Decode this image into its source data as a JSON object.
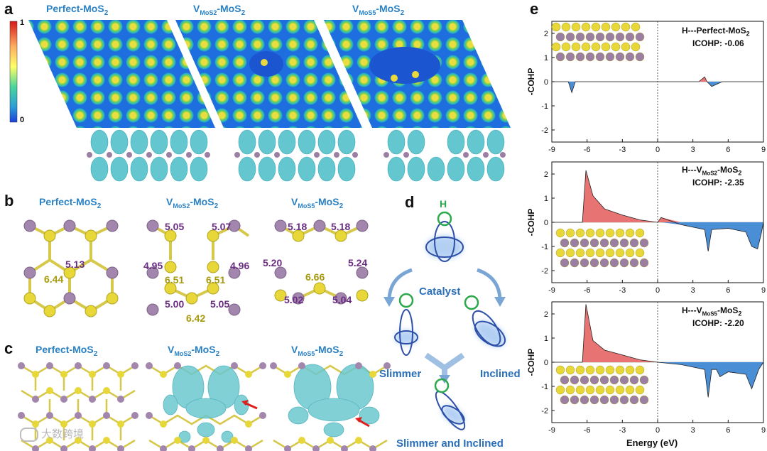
{
  "panels": {
    "a": {
      "letter": "a",
      "titles": [
        "Perfect-MoS",
        "V",
        "V"
      ],
      "colorbar": {
        "max": "1",
        "min": "0"
      }
    },
    "b": {
      "letter": "b",
      "titles": [
        "Perfect-MoS2",
        "VMoS2-MoS2",
        "VMoS5-MoS2"
      ],
      "perfect": {
        "a": "5.13",
        "b": "6.44"
      },
      "vmos2": {
        "a": "5.05",
        "b": "5.07",
        "c": "4.95",
        "d": "6.51",
        "e": "6.51",
        "f": "4.96",
        "g": "5.00",
        "h": "5.05",
        "i": "6.42"
      },
      "vmos5": {
        "a": "5.18",
        "b": "5.18",
        "c": "5.20",
        "d": "6.66",
        "e": "5.24",
        "f": "5.02",
        "g": "5.04"
      }
    },
    "c": {
      "letter": "c"
    },
    "d": {
      "letter": "d",
      "h": "H",
      "catalyst": "Catalyst",
      "slimmer": "Slimmer",
      "inclined": "Inclined",
      "both": "Slimmer and Inclined"
    },
    "e": {
      "letter": "e"
    }
  },
  "title_parts": {
    "sub2": "2",
    "v": "V",
    "mos2_sub": "MoS2",
    "mos5_sub": "MoS5",
    "mos2_tail": "-MoS",
    "perfect": "Perfect-MoS"
  },
  "chart_data": [
    {
      "type": "area",
      "title": "H---Perfect-MoS2",
      "annotation": "ICOHP: -0.06",
      "ylabel": "-COHP",
      "xlabel": "",
      "xlim": [
        -9,
        9
      ],
      "ylim": [
        -2.5,
        2.5
      ],
      "xticks": [
        "-9",
        "-6",
        "-3",
        "0",
        "3",
        "6",
        "9"
      ],
      "yticks": [
        "2",
        "1",
        "0",
        "-1",
        "-2"
      ],
      "x": [
        -9,
        -7.6,
        -7.3,
        -7.0,
        -6.5,
        -3.0,
        0,
        3.5,
        4.0,
        4.2,
        4.6,
        5.5,
        9
      ],
      "y": [
        0,
        0,
        -0.45,
        0,
        0,
        0,
        0,
        0,
        0.2,
        0,
        -0.2,
        0,
        0
      ]
    },
    {
      "type": "area",
      "title": "H---VMoS2-MoS2",
      "annotation": "ICOHP: -2.35",
      "ylabel": "-COHP",
      "xlabel": "",
      "xlim": [
        -9,
        9
      ],
      "ylim": [
        -2.5,
        2.5
      ],
      "xticks": [
        "-9",
        "-6",
        "-3",
        "0",
        "3",
        "6",
        "9"
      ],
      "yticks": [
        "2",
        "1",
        "0",
        "-1",
        "-2"
      ],
      "x": [
        -9,
        -6.4,
        -6.1,
        -5.5,
        -4.5,
        -3.0,
        -1.5,
        0,
        0.3,
        2.0,
        4.0,
        4.3,
        4.6,
        6.0,
        7.5,
        8.0,
        8.5,
        8.8,
        9
      ],
      "y": [
        0,
        0,
        2.15,
        1.1,
        0.55,
        0.3,
        0.1,
        0,
        0.2,
        -0.1,
        -0.3,
        -1.2,
        -0.3,
        -0.25,
        -0.4,
        -1.0,
        -1.1,
        -0.5,
        0
      ]
    },
    {
      "type": "area",
      "title": "H---VMoS5-MoS2",
      "annotation": "ICOHP: -2.20",
      "ylabel": "-COHP",
      "xlabel": "Energy (eV)",
      "xlim": [
        -9,
        9
      ],
      "ylim": [
        -2.5,
        2.5
      ],
      "xticks": [
        "-9",
        "-6",
        "-3",
        "0",
        "3",
        "6",
        "9"
      ],
      "yticks": [
        "2",
        "1",
        "0",
        "-1",
        "-2"
      ],
      "x": [
        -9,
        -6.4,
        -6.1,
        -5.5,
        -4.5,
        -3.0,
        -1.5,
        0,
        2.0,
        4.0,
        4.3,
        4.6,
        5.0,
        5.3,
        6.0,
        7.5,
        8.0,
        8.6,
        9
      ],
      "y": [
        0,
        0,
        2.4,
        0.9,
        0.5,
        0.3,
        0.1,
        0,
        -0.1,
        -0.3,
        -1.45,
        -0.3,
        -0.3,
        -0.6,
        -0.4,
        -0.5,
        -1.1,
        -0.3,
        0
      ]
    }
  ],
  "watermark": "大数跨境",
  "colors": {
    "title_blue": "#2a82c6",
    "mo": "#9b7fa3",
    "s": "#e6d93a",
    "pos": "#e87373",
    "neg": "#4a8fd6",
    "iso": "#5fc2cd"
  }
}
